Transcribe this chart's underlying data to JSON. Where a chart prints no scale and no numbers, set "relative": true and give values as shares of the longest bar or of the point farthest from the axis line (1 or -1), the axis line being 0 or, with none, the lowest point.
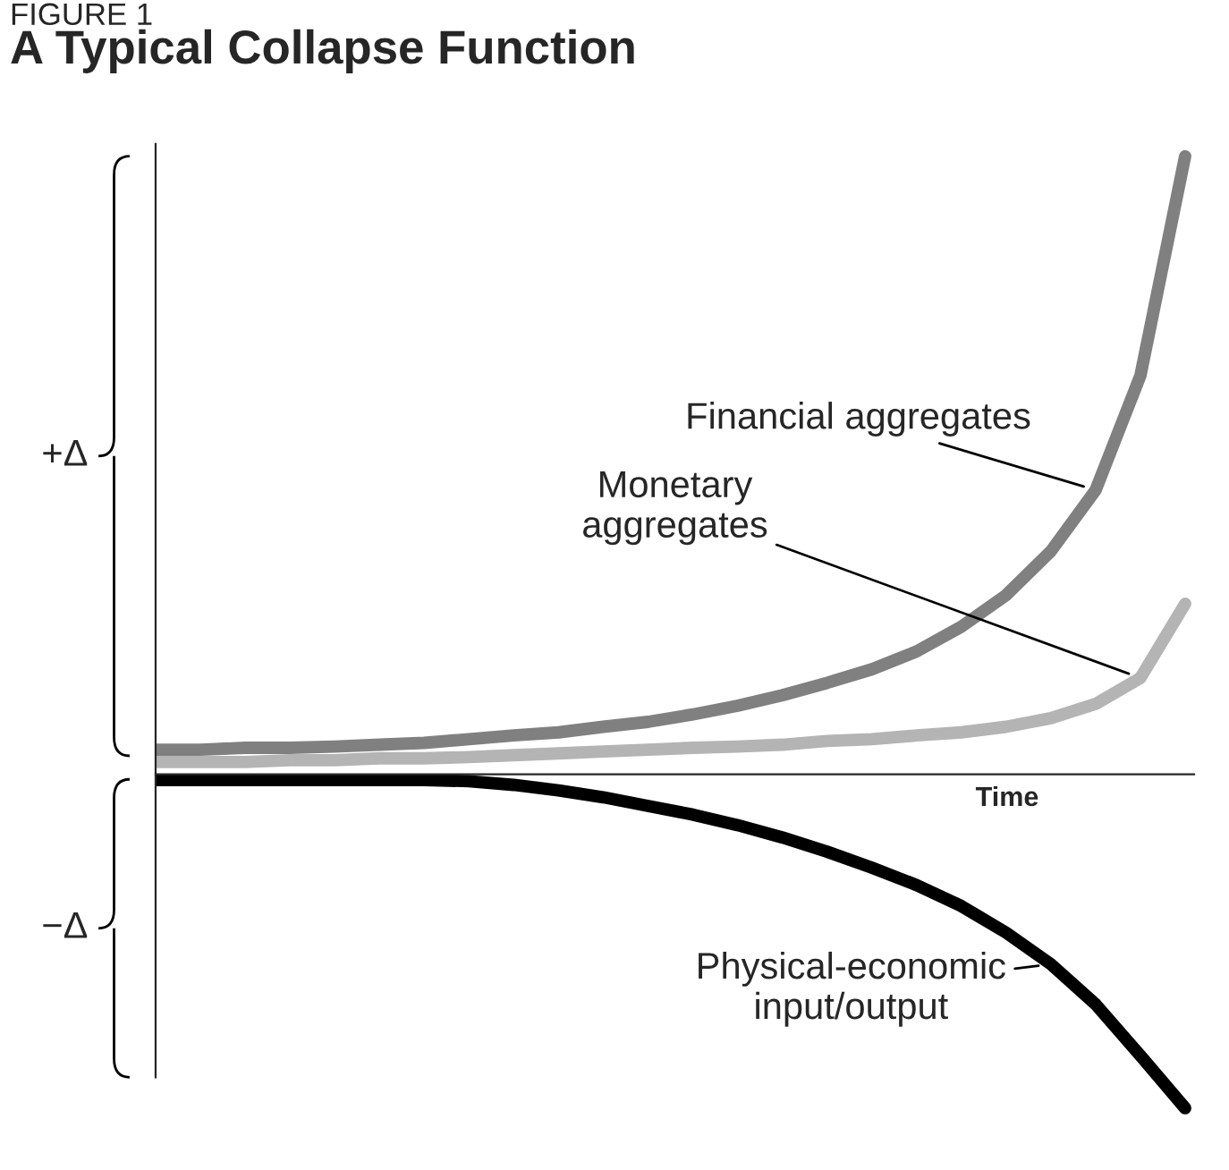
{
  "chart_data": {
    "type": "line",
    "title": "A Typical Collapse Function",
    "xlabel": "Time",
    "relative": true,
    "annotations": [
      "FIGURE 1",
      "+Δ",
      "−Δ"
    ],
    "categories": [
      null,
      null,
      null,
      null,
      null,
      null,
      null,
      null,
      null,
      null,
      null,
      null,
      null,
      null,
      null,
      null,
      null,
      null,
      null,
      null,
      null,
      null,
      null,
      null
    ],
    "series": [
      {
        "name": "Financial aggregates",
        "color": "#808080",
        "values": [
          0.04,
          0.04,
          0.043,
          0.043,
          0.045,
          0.048,
          0.051,
          0.057,
          0.063,
          0.068,
          0.077,
          0.085,
          0.097,
          0.111,
          0.128,
          0.148,
          0.17,
          0.199,
          0.239,
          0.29,
          0.361,
          0.46,
          0.645,
          1
        ]
      },
      {
        "name": "Monetary\naggregates",
        "color": "#b4b4b4",
        "values": [
          0.02,
          0.02,
          0.02,
          0.023,
          0.023,
          0.026,
          0.026,
          0.028,
          0.031,
          0.034,
          0.037,
          0.04,
          0.043,
          0.045,
          0.048,
          0.054,
          0.057,
          0.063,
          0.068,
          0.077,
          0.091,
          0.114,
          0.156,
          0.276
        ]
      },
      {
        "name": "Physical-economic\ninput/output",
        "color": "#000000",
        "values": [
          -0.009,
          -0.009,
          -0.009,
          -0.009,
          -0.009,
          -0.009,
          -0.009,
          -0.011,
          -0.017,
          -0.026,
          -0.037,
          -0.051,
          -0.065,
          -0.082,
          -0.102,
          -0.125,
          -0.151,
          -0.179,
          -0.213,
          -0.256,
          -0.307,
          -0.372,
          -0.455,
          -0.54
        ]
      }
    ]
  }
}
